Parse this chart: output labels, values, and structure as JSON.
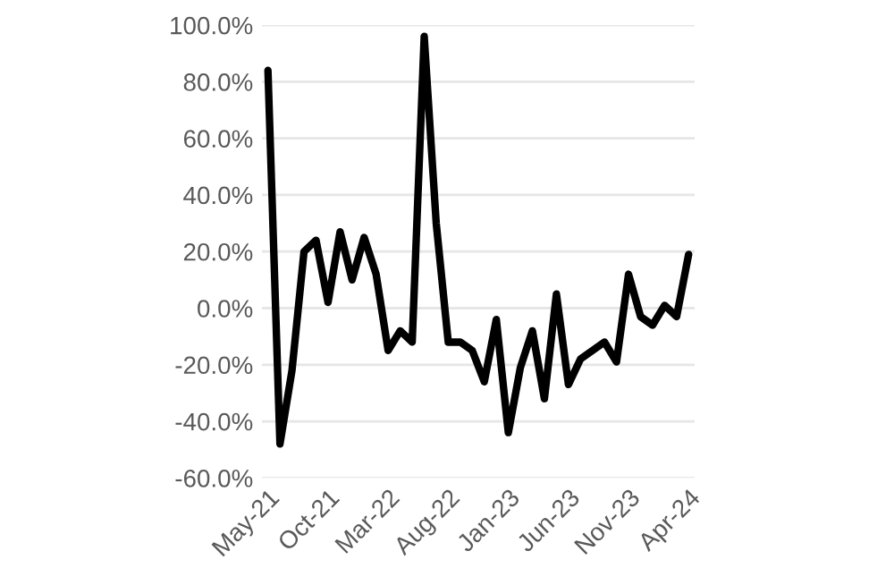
{
  "chart_data": {
    "type": "line",
    "categories": [
      "May-21",
      null,
      null,
      null,
      null,
      "Oct-21",
      null,
      null,
      null,
      null,
      "Mar-22",
      null,
      null,
      null,
      null,
      "Aug-22",
      null,
      null,
      null,
      null,
      "Jan-23",
      null,
      null,
      null,
      null,
      "Jun-23",
      null,
      null,
      null,
      null,
      "Nov-23",
      null,
      null,
      null,
      null,
      "Apr-24"
    ],
    "series": [
      {
        "color": "#000000",
        "values": [
          84,
          -48,
          -22,
          20,
          24,
          2,
          27,
          10,
          25,
          12,
          -15,
          -8,
          -12,
          96,
          30,
          -12,
          -12,
          -15,
          -26,
          -4,
          -44,
          -21,
          -8,
          -32,
          5,
          -27,
          -18,
          -15,
          -12,
          -19,
          12,
          -3,
          -6,
          1,
          -3,
          19
        ]
      }
    ],
    "ylim": [
      -60,
      100
    ],
    "yticks": [
      {
        "value": -60,
        "label": "-60.0%"
      },
      {
        "value": -40,
        "label": "-40.0%"
      },
      {
        "value": -20,
        "label": "-20.0%"
      },
      {
        "value": 0,
        "label": "0.0%"
      },
      {
        "value": 20,
        "label": "20.0%"
      },
      {
        "value": 40,
        "label": "40.0%"
      },
      {
        "value": 60,
        "label": "60.0%"
      },
      {
        "value": 80,
        "label": "80.0%"
      },
      {
        "value": 100,
        "label": "100.0%"
      }
    ],
    "grid": "y",
    "marker": "none",
    "line_style": "solid"
  }
}
